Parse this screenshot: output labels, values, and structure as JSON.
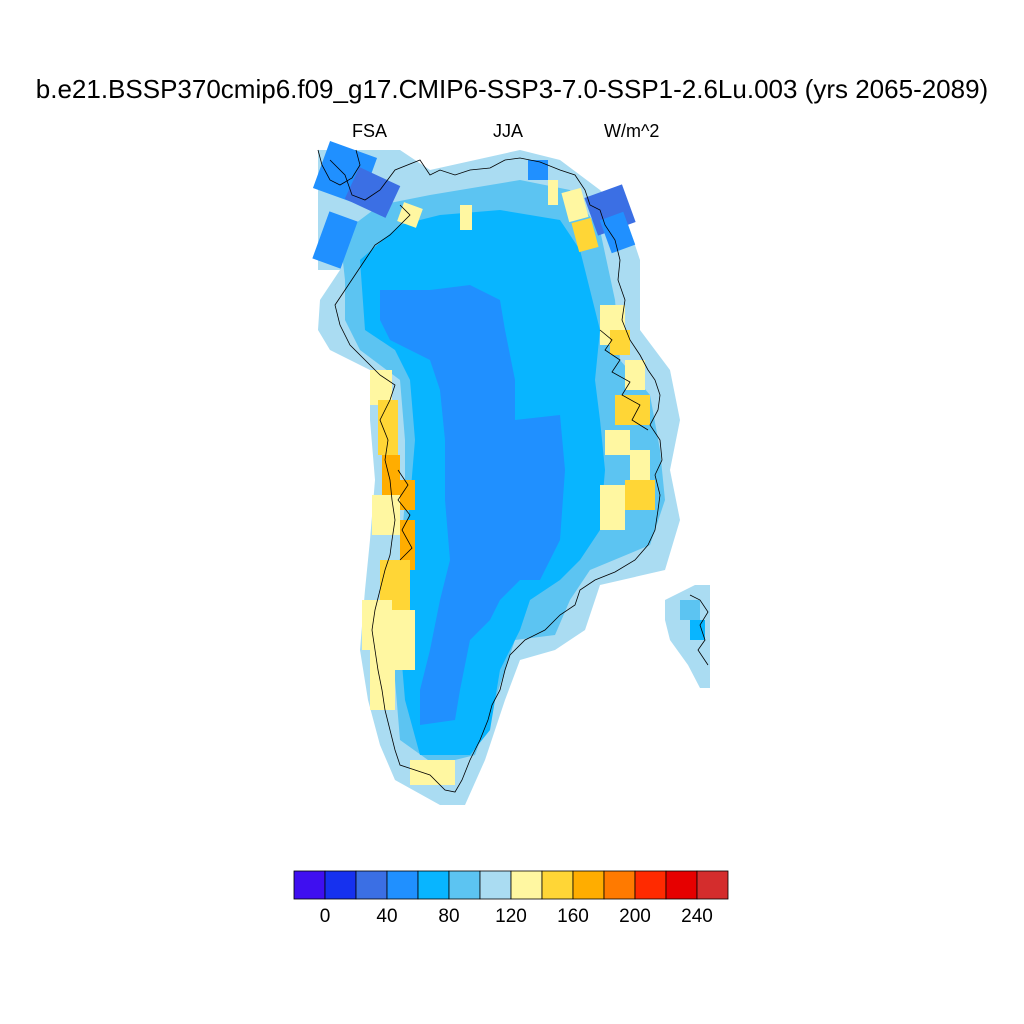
{
  "header": {
    "title": "b.e21.BSSP370cmip6.f09_g17.CMIP6-SSP3-7.0-SSP1-2.6Lu.003 (yrs 2065-2089)",
    "variable": "FSA",
    "season": "JJA",
    "units": "W/m^2"
  },
  "colorbar": {
    "colors": [
      "#3f0ff0",
      "#1631ef",
      "#3b6fe4",
      "#2090ff",
      "#08b5ff",
      "#5cc4f2",
      "#aadcf2",
      "#fff7a1",
      "#ffd636",
      "#ffad00",
      "#ff7a00",
      "#ff2a00",
      "#e60000",
      "#d42d2d"
    ],
    "tick_labels": [
      "0",
      "40",
      "80",
      "120",
      "160",
      "200",
      "240"
    ]
  },
  "map": {
    "region": "Greenland",
    "color_bins_note": "",
    "coastline_color": "#000000"
  }
}
